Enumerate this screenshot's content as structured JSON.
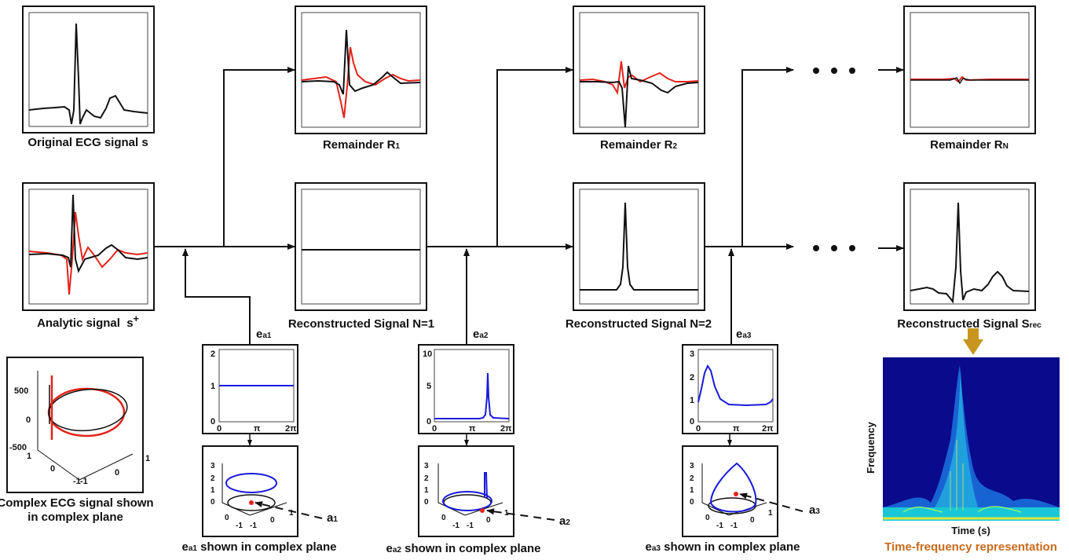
{
  "labels": {
    "original": "Original ECG signal s",
    "analytic": "Analytic signal",
    "analytic_symbol": "s",
    "analytic_sup": "+",
    "complex_line1": "Complex ECG signal shown",
    "complex_line2": "in complex plane",
    "remainder1": "Remainder R",
    "remainder1_sub": "1",
    "remainder2": "Remainder R",
    "remainder2_sub": "2",
    "remainderN": "Remainder R",
    "remainderN_sub": "N",
    "recon1": "Reconstructed Signal N=1",
    "recon2": "Reconstructed Signal N=2",
    "recon_final": "Reconstructed Signal S",
    "recon_final_sub": "rec",
    "ea1": "e",
    "ea1_sub": "a1",
    "ea2": "e",
    "ea2_sub": "a2",
    "ea3": "e",
    "ea3_sub": "a3",
    "a1": "a",
    "a1_sub": "1",
    "a2": "a",
    "a2_sub": "2",
    "a3": "a",
    "a3_sub": "3",
    "ea1_plane": "shown in complex plane",
    "ea2_plane": "shown in complex plane",
    "ea3_plane": "shown in complex plane",
    "tf_title": "Time-frequency representation",
    "tf_xlabel": "Time (s)",
    "tf_ylabel": "Frequency"
  },
  "kernel_plots": {
    "ticks_x": [
      "0",
      "π",
      "2π"
    ],
    "ea1": {
      "yticks": [
        "2",
        "1",
        "0"
      ],
      "level": 1,
      "ymax": 2
    },
    "ea2": {
      "yticks": [
        "10",
        "5",
        "0"
      ],
      "peak": 7,
      "ymax": 10
    },
    "ea3": {
      "yticks": [
        "3",
        "2",
        "1",
        "0"
      ],
      "peak": 2.45,
      "ymax": 3
    }
  },
  "complex_plane": {
    "zticks": [
      "500",
      "0",
      "-500"
    ],
    "xticks": [
      "1",
      "0",
      "-1"
    ],
    "yticks": [
      "-1",
      "0",
      "1"
    ]
  },
  "plane3d": {
    "zticks": [
      "3",
      "2",
      "1",
      "0"
    ],
    "xticks": [
      "0",
      "-1",
      "-1",
      "0",
      "1"
    ]
  },
  "colors": {
    "real": "#111111",
    "imag": "#e2231a",
    "kernel": "#1a1adc",
    "arrow_gold": "#c8961e",
    "tf_bg": "#0a0a8c"
  },
  "ellipsis": "• • •"
}
